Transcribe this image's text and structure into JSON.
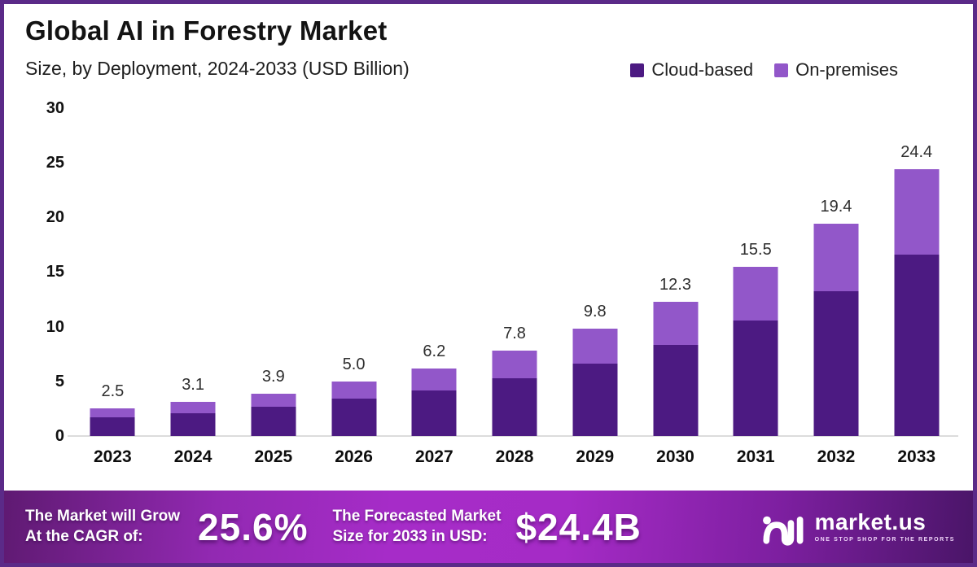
{
  "header": {
    "title": "Global AI in Forestry Market",
    "subtitle": "Size, by Deployment, 2024-2033 (USD Billion)"
  },
  "colors": {
    "cloud_based": "#4c1a82",
    "on_premises": "#9257c9",
    "border": "#5b2a88",
    "banner_magenta": "#a62cc8",
    "banner_dark_edge": "#4a1568",
    "baseline": "#dcdcdc"
  },
  "chart_data": {
    "type": "bar",
    "stacked": true,
    "title": "Global AI in Forestry Market",
    "subtitle": "Size, by Deployment, 2024-2033 (USD Billion)",
    "unit": "USD Billion",
    "categories": [
      "2023",
      "2024",
      "2025",
      "2026",
      "2027",
      "2028",
      "2029",
      "2030",
      "2031",
      "2032",
      "2033"
    ],
    "series": [
      {
        "name": "Cloud-based",
        "color": "#4c1a82",
        "values": [
          1.7,
          2.1,
          2.65,
          3.4,
          4.2,
          5.3,
          6.65,
          8.35,
          10.55,
          13.2,
          16.6
        ]
      },
      {
        "name": "On-premises",
        "color": "#9257c9",
        "values": [
          0.8,
          1.0,
          1.25,
          1.6,
          2.0,
          2.5,
          3.15,
          3.95,
          4.95,
          6.2,
          7.8
        ]
      }
    ],
    "totals": [
      2.5,
      3.1,
      3.9,
      5.0,
      6.2,
      7.8,
      9.8,
      12.3,
      15.5,
      19.4,
      24.4
    ],
    "totals_labels": [
      "2.5",
      "3.1",
      "3.9",
      "5.0",
      "6.2",
      "7.8",
      "9.8",
      "12.3",
      "15.5",
      "19.4",
      "24.4"
    ],
    "ylim": [
      0,
      30
    ],
    "yticks": [
      "0",
      "5",
      "10",
      "15",
      "20",
      "25",
      "30"
    ],
    "grid": false,
    "legend_position": "top-right"
  },
  "legend": {
    "items": [
      {
        "label": "Cloud-based",
        "color": "#4c1a82"
      },
      {
        "label": "On-premises",
        "color": "#9257c9"
      }
    ]
  },
  "footer": {
    "cagr_label_line1": "The Market will Grow",
    "cagr_label_line2": "At the CAGR of:",
    "cagr_value": "25.6%",
    "forecast_label_line1": "The Forecasted Market",
    "forecast_label_line2": "Size for 2033 in USD:",
    "forecast_value": "$24.4B",
    "brand": {
      "name": "market.us",
      "tagline": "ONE STOP SHOP FOR THE REPORTS"
    }
  }
}
